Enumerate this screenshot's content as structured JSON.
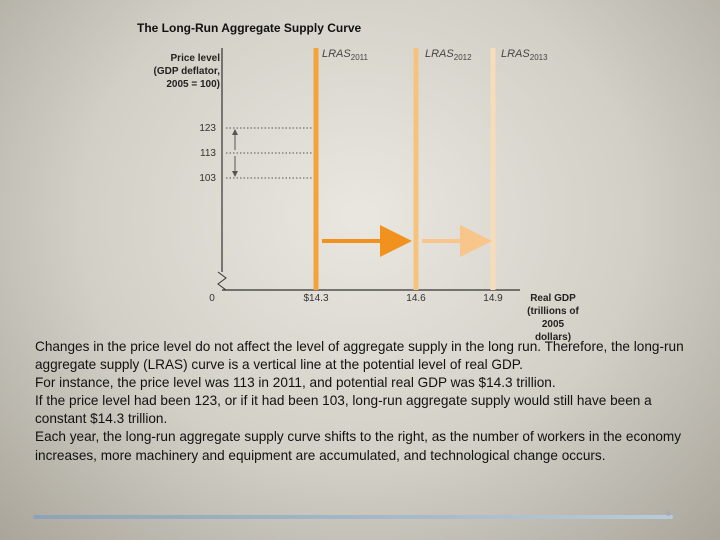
{
  "title": "The Long-Run Aggregate Supply Curve",
  "y_axis_label": [
    "Price level",
    "(GDP deflator,",
    "2005 = 100)"
  ],
  "x_axis_label": [
    "Real GDP",
    "(trillions of",
    "2005 dollars)"
  ],
  "origin_label": "0",
  "y_ticks": [
    "123",
    "113",
    "103"
  ],
  "curves": [
    {
      "label": "LRAS",
      "year": "2011",
      "gdp": 14.3,
      "gdp_label": "$14.3",
      "color": "#f4a23c"
    },
    {
      "label": "LRAS",
      "year": "2012",
      "gdp": 14.6,
      "gdp_label": "14.6",
      "color": "#f6c37e"
    },
    {
      "label": "LRAS",
      "year": "2013",
      "gdp": 14.9,
      "gdp_label": "14.9",
      "color": "#f7dcb8"
    }
  ],
  "price_levels": [
    123,
    113,
    103
  ],
  "colors": {
    "arrow_strong": "#f2921e",
    "arrow_light": "#f8c58a",
    "accent_bar": "#9fb3c6"
  },
  "paragraphs": [
    "Changes in the price level do not affect the level of aggregate supply in the long run. Therefore, the long-run aggregate supply (LRAS) curve is a vertical line at the potential level of real GDP.",
    "For instance, the price level was 113 in 2011, and potential real GDP was $14.3 trillion.",
    "If the price level had been 123, or if it had been 103, long-run aggregate supply would still have been a constant $14.3 trillion.",
    "Each year, the long-run aggregate supply curve shifts to the right, as the number of workers in the economy increases, more machinery and equipment are accumulated, and technological change occurs."
  ],
  "page_mark": "6"
}
